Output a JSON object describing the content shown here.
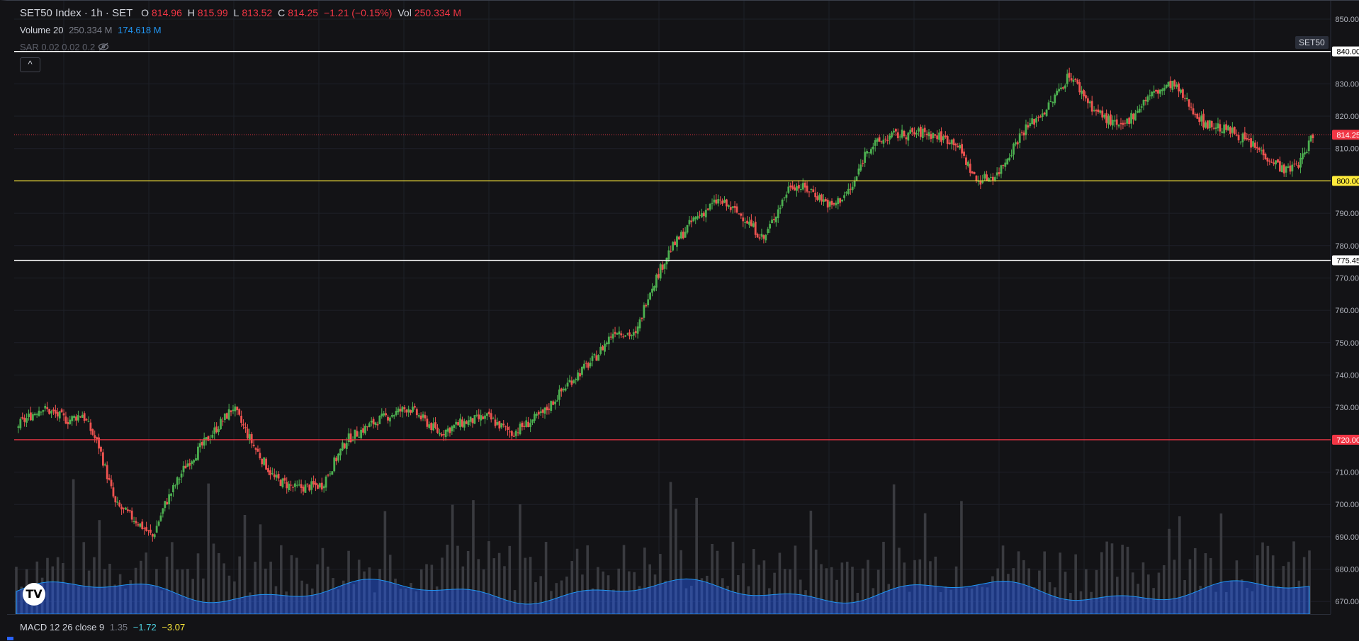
{
  "legend": {
    "symbol": "SET50 Index · 1h · SET",
    "open_label": "O",
    "open": "814.96",
    "high_label": "H",
    "high": "815.99",
    "low_label": "L",
    "low": "813.52",
    "close_label": "C",
    "close": "814.25",
    "change": "−1.21 (−0.15%)",
    "vol_label": "Vol",
    "vol": "250.334 M",
    "volume_indicator": "Volume 20",
    "volume_value": "250.334 M",
    "volume_ma": "174.618 M",
    "sar": "SAR 0.02 0.02 0.2"
  },
  "symbol_tag": "SET50",
  "collapse_button": "^",
  "macd": {
    "label": "MACD 12 26 close 9",
    "v1": "1.35",
    "v2": "−1.72",
    "v3": "−3.07"
  },
  "logo_text": "TV",
  "colors": {
    "up": "#4caf50",
    "down": "#ef5350",
    "volume": "#2962ff",
    "hline_yellow": "#ffeb3b",
    "hline_red": "#f23645",
    "hline_white": "#ffffff"
  },
  "chart_data": {
    "type": "candlestick",
    "timeframe": "1h",
    "y_axis": {
      "ticks": [
        850,
        840,
        830,
        820,
        810,
        800,
        790,
        780,
        770,
        760,
        750,
        740,
        730,
        720,
        710,
        700,
        690,
        680,
        670
      ],
      "range": [
        665,
        853
      ]
    },
    "horizontal_lines": [
      {
        "value": 840.0,
        "label": "840.00",
        "color": "white"
      },
      {
        "value": 800.0,
        "label": "800.00",
        "color": "yellow"
      },
      {
        "value": 775.45,
        "label": "775.45",
        "color": "white"
      },
      {
        "value": 720.0,
        "label": "720.00",
        "color": "red"
      }
    ],
    "last_price": {
      "value": 814.25,
      "label": "814.25"
    },
    "close_path_keypoints": [
      [
        0,
        724
      ],
      [
        12,
        730
      ],
      [
        25,
        726
      ],
      [
        32,
        728
      ],
      [
        40,
        718
      ],
      [
        48,
        700
      ],
      [
        58,
        695
      ],
      [
        66,
        690
      ],
      [
        72,
        700
      ],
      [
        82,
        712
      ],
      [
        95,
        722
      ],
      [
        105,
        730
      ],
      [
        115,
        718
      ],
      [
        125,
        708
      ],
      [
        135,
        705
      ],
      [
        148,
        706
      ],
      [
        160,
        720
      ],
      [
        175,
        726
      ],
      [
        190,
        730
      ],
      [
        205,
        722
      ],
      [
        215,
        725
      ],
      [
        228,
        727
      ],
      [
        240,
        722
      ],
      [
        255,
        728
      ],
      [
        268,
        738
      ],
      [
        280,
        745
      ],
      [
        290,
        754
      ],
      [
        300,
        752
      ],
      [
        306,
        765
      ],
      [
        316,
        778
      ],
      [
        328,
        788
      ],
      [
        340,
        794
      ],
      [
        352,
        789
      ],
      [
        362,
        782
      ],
      [
        368,
        790
      ],
      [
        375,
        799
      ],
      [
        385,
        797
      ],
      [
        395,
        792
      ],
      [
        405,
        798
      ],
      [
        412,
        810
      ],
      [
        424,
        814
      ],
      [
        440,
        815
      ],
      [
        455,
        812
      ],
      [
        465,
        800
      ],
      [
        475,
        802
      ],
      [
        487,
        815
      ],
      [
        500,
        823
      ],
      [
        510,
        833
      ],
      [
        522,
        822
      ],
      [
        535,
        816
      ],
      [
        548,
        826
      ],
      [
        560,
        830
      ],
      [
        575,
        818
      ],
      [
        590,
        815
      ],
      [
        605,
        808
      ],
      [
        615,
        803
      ],
      [
        622,
        806
      ],
      [
        628,
        814.25
      ]
    ],
    "volume_ma_level": 0.62
  }
}
